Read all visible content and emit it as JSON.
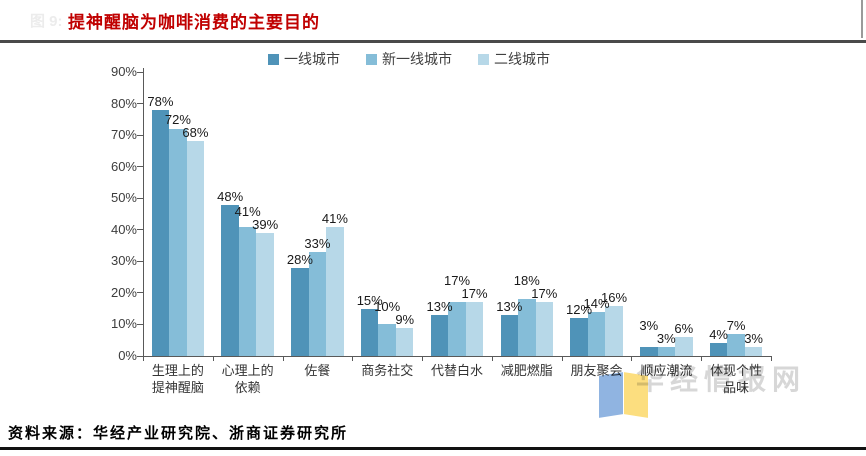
{
  "ghost_label": "图 9:",
  "title": "提神醒脑为咖啡消费的主要目的",
  "title_color": "#c00000",
  "legend": [
    "一线城市",
    "新一线城市",
    "二线城市"
  ],
  "chart_data": {
    "type": "bar",
    "title": "提神醒脑为咖啡消费的主要目的",
    "categories": [
      "生理上的\n提神醒脑",
      "心理上的\n依赖",
      "佐餐",
      "商务社交",
      "代替白水",
      "减肥燃脂",
      "朋友聚会",
      "顺应潮流",
      "体现个性\n品味"
    ],
    "series": [
      {
        "name": "一线城市",
        "color": "#4f93b8",
        "values": [
          78,
          48,
          28,
          15,
          13,
          13,
          12,
          3,
          4
        ]
      },
      {
        "name": "新一线城市",
        "color": "#85bdd8",
        "values": [
          72,
          41,
          33,
          10,
          17,
          18,
          14,
          3,
          7
        ]
      },
      {
        "name": "二线城市",
        "color": "#b7d8e8",
        "values": [
          68,
          39,
          41,
          9,
          17,
          17,
          16,
          6,
          3
        ]
      }
    ],
    "ylim": [
      0,
      90
    ],
    "ytick_step": 10,
    "yaxis_format": "percent",
    "grid": false,
    "legend_position": "top",
    "data_labels": true
  },
  "watermark": {
    "text": "华经情报网",
    "logo_blue": "#7da7dc",
    "logo_yellow": "#fcd968"
  },
  "source": "资料来源：华经产业研究院、浙商证券研究所"
}
